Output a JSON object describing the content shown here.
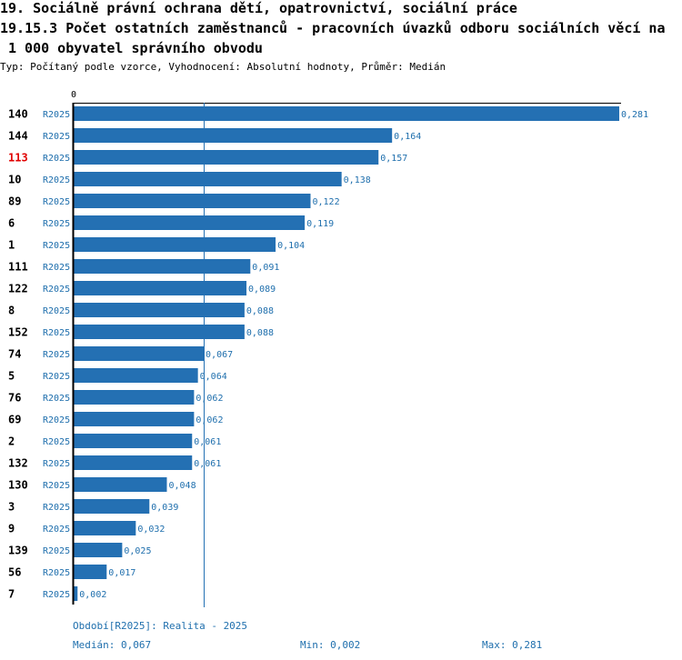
{
  "header": {
    "line1": "19. Sociálně právní ochrana dětí, opatrovnictví, sociální práce",
    "line2": "19.15.3 Počet ostatních zaměstnanců - pracovních úvazků odboru sociálních věcí na",
    "line3": "1 000 obyvatel správního obvodu",
    "subtitle": "Typ: Počítaný podle vzorce, Vyhodnocení: Absolutní hodnoty, Průměr: Medián"
  },
  "chart_data": {
    "type": "bar",
    "orientation": "horizontal",
    "axis_zero_label": "0",
    "xlim": [
      0,
      0.281
    ],
    "series_label": "R2025",
    "median": 0.067,
    "bar_color": "#2470b3",
    "label_color": "#1f6fad",
    "highlight_color": "#e00000",
    "highlight_category": "113",
    "categories": [
      "140",
      "144",
      "113",
      "10",
      "89",
      "6",
      "1",
      "111",
      "122",
      "8",
      "152",
      "74",
      "5",
      "76",
      "69",
      "2",
      "132",
      "130",
      "3",
      "9",
      "139",
      "56",
      "7"
    ],
    "values": [
      0.281,
      0.164,
      0.157,
      0.138,
      0.122,
      0.119,
      0.104,
      0.091,
      0.089,
      0.088,
      0.088,
      0.067,
      0.064,
      0.062,
      0.062,
      0.061,
      0.061,
      0.048,
      0.039,
      0.032,
      0.025,
      0.017,
      0.002
    ],
    "value_labels": [
      "0,281",
      "0,164",
      "0,157",
      "0,138",
      "0,122",
      "0,119",
      "0,104",
      "0,091",
      "0,089",
      "0,088",
      "0,088",
      "0,067",
      "0,064",
      "0,062",
      "0,062",
      "0,061",
      "0,061",
      "0,048",
      "0,039",
      "0,032",
      "0,025",
      "0,017",
      "0,002"
    ]
  },
  "footer": {
    "period": "Období[R2025]: Realita - 2025",
    "median": "Medián: 0,067",
    "min": "Min: 0,002",
    "max": "Max: 0,281"
  }
}
